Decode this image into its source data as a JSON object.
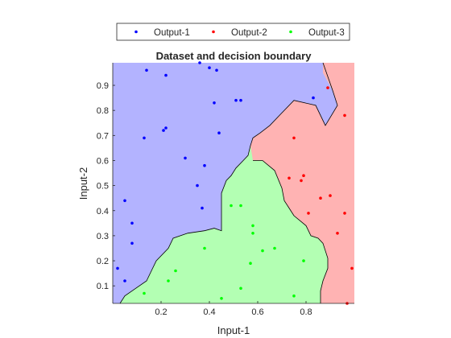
{
  "chart_data": {
    "type": "scatter",
    "title": "Dataset and decision boundary",
    "xlabel": "Input-1",
    "ylabel": "Input-2",
    "xlim": [
      0,
      1
    ],
    "ylim": [
      0.03,
      0.99
    ],
    "xticks": [
      0.2,
      0.4,
      0.6,
      0.8
    ],
    "xtick_labels": [
      "0.2",
      "0.4",
      "0.6",
      "0.8"
    ],
    "yticks": [
      0.1,
      0.2,
      0.3,
      0.4,
      0.5,
      0.6,
      0.7,
      0.8,
      0.9
    ],
    "ytick_labels": [
      "0.1",
      "0.2",
      "0.3",
      "0.4",
      "0.5",
      "0.6",
      "0.7",
      "0.8",
      "0.9"
    ],
    "legend_position": "top",
    "series": [
      {
        "name": "Output-1",
        "color": "#0000ff",
        "region_color": "#b3b3ff",
        "points": [
          [
            0.02,
            0.17
          ],
          [
            0.05,
            0.12
          ],
          [
            0.05,
            0.44
          ],
          [
            0.08,
            0.35
          ],
          [
            0.08,
            0.27
          ],
          [
            0.13,
            0.69
          ],
          [
            0.14,
            0.96
          ],
          [
            0.21,
            0.72
          ],
          [
            0.22,
            0.73
          ],
          [
            0.22,
            0.94
          ],
          [
            0.3,
            0.61
          ],
          [
            0.35,
            0.5
          ],
          [
            0.36,
            0.99
          ],
          [
            0.37,
            0.41
          ],
          [
            0.38,
            0.58
          ],
          [
            0.4,
            0.97
          ],
          [
            0.42,
            0.83
          ],
          [
            0.43,
            0.96
          ],
          [
            0.44,
            0.71
          ],
          [
            0.51,
            0.84
          ],
          [
            0.53,
            0.84
          ],
          [
            0.83,
            0.85
          ]
        ]
      },
      {
        "name": "Output-2",
        "color": "#ff0000",
        "region_color": "#ffb3b3",
        "points": [
          [
            0.73,
            0.53
          ],
          [
            0.75,
            0.69
          ],
          [
            0.78,
            0.52
          ],
          [
            0.79,
            0.54
          ],
          [
            0.81,
            0.39
          ],
          [
            0.86,
            0.45
          ],
          [
            0.89,
            0.89
          ],
          [
            0.9,
            0.46
          ],
          [
            0.93,
            0.31
          ],
          [
            0.96,
            0.78
          ],
          [
            0.96,
            0.39
          ],
          [
            0.97,
            0.03
          ],
          [
            0.99,
            0.17
          ]
        ]
      },
      {
        "name": "Output-3",
        "color": "#00ff00",
        "region_color": "#b3ffb3",
        "points": [
          [
            0.13,
            0.07
          ],
          [
            0.23,
            0.12
          ],
          [
            0.26,
            0.16
          ],
          [
            0.38,
            0.25
          ],
          [
            0.45,
            0.05
          ],
          [
            0.49,
            0.42
          ],
          [
            0.53,
            0.09
          ],
          [
            0.53,
            0.42
          ],
          [
            0.57,
            0.19
          ],
          [
            0.58,
            0.34
          ],
          [
            0.58,
            0.31
          ],
          [
            0.62,
            0.24
          ],
          [
            0.67,
            0.25
          ],
          [
            0.75,
            0.06
          ],
          [
            0.79,
            0.2
          ]
        ]
      }
    ],
    "regions": {
      "blue": [
        [
          0,
          0.03
        ],
        [
          0,
          1
        ],
        [
          0.87,
          1
        ],
        [
          0.87,
          0.95
        ],
        [
          0.91,
          0.88
        ],
        [
          0.93,
          0.82
        ],
        [
          0.88,
          0.74
        ],
        [
          0.84,
          0.82
        ],
        [
          0.75,
          0.84
        ],
        [
          0.69,
          0.78
        ],
        [
          0.65,
          0.74
        ],
        [
          0.61,
          0.71
        ],
        [
          0.58,
          0.69
        ],
        [
          0.57,
          0.66
        ],
        [
          0.56,
          0.62
        ],
        [
          0.54,
          0.6
        ],
        [
          0.51,
          0.57
        ],
        [
          0.49,
          0.54
        ],
        [
          0.47,
          0.52
        ],
        [
          0.45,
          0.47
        ],
        [
          0.45,
          0.41
        ],
        [
          0.45,
          0.32
        ],
        [
          0.42,
          0.33
        ],
        [
          0.38,
          0.32
        ],
        [
          0.31,
          0.31
        ],
        [
          0.25,
          0.29
        ],
        [
          0.23,
          0.25
        ],
        [
          0.18,
          0.2
        ],
        [
          0.16,
          0.16
        ],
        [
          0.14,
          0.12
        ],
        [
          0.08,
          0.08
        ],
        [
          0.05,
          0.06
        ],
        [
          0.03,
          0.03
        ]
      ],
      "red": [
        [
          0.87,
          1
        ],
        [
          1,
          1
        ],
        [
          1,
          0.03
        ],
        [
          0.86,
          0.03
        ],
        [
          0.86,
          0.08
        ],
        [
          0.87,
          0.12
        ],
        [
          0.89,
          0.17
        ],
        [
          0.89,
          0.21
        ],
        [
          0.87,
          0.27
        ],
        [
          0.85,
          0.29
        ],
        [
          0.82,
          0.3
        ],
        [
          0.8,
          0.34
        ],
        [
          0.75,
          0.38
        ],
        [
          0.73,
          0.41
        ],
        [
          0.71,
          0.44
        ],
        [
          0.7,
          0.49
        ],
        [
          0.67,
          0.56
        ],
        [
          0.62,
          0.6
        ],
        [
          0.58,
          0.6
        ],
        [
          0.57,
          0.66
        ],
        [
          0.58,
          0.69
        ],
        [
          0.61,
          0.71
        ],
        [
          0.65,
          0.74
        ],
        [
          0.69,
          0.78
        ],
        [
          0.75,
          0.84
        ],
        [
          0.84,
          0.82
        ],
        [
          0.88,
          0.74
        ],
        [
          0.93,
          0.82
        ],
        [
          0.91,
          0.88
        ],
        [
          0.87,
          0.95
        ]
      ]
    }
  }
}
